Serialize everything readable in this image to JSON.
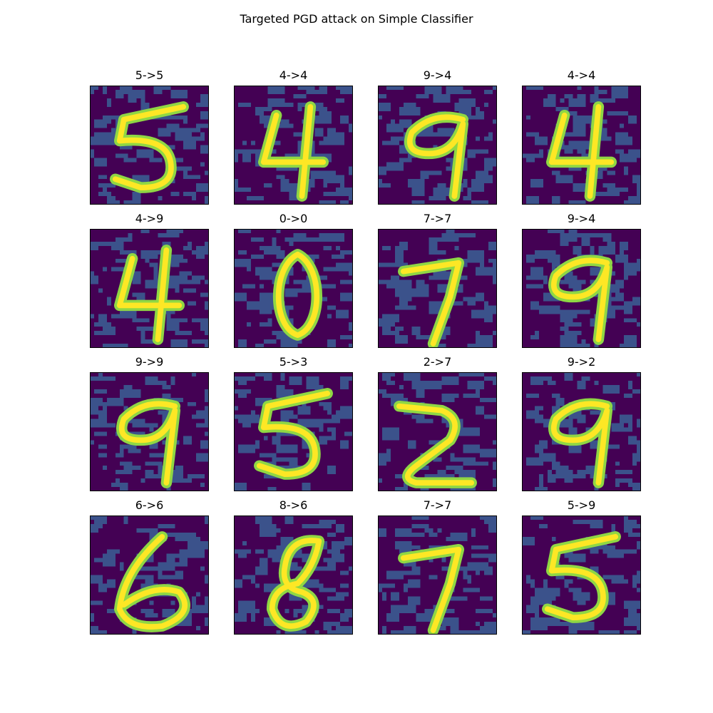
{
  "figure": {
    "title": "Targeted PGD attack on Simple Classifier"
  },
  "chart_data": {
    "type": "heatmap",
    "title": "Targeted PGD attack on Simple Classifier",
    "grid": {
      "rows": 4,
      "cols": 4
    },
    "image_size": [
      28,
      28
    ],
    "colormap": "viridis",
    "axes": "off",
    "panels": [
      {
        "label": "5->5",
        "digit": "5",
        "true": 5,
        "pred": 5
      },
      {
        "label": "4->4",
        "digit": "4",
        "true": 4,
        "pred": 4
      },
      {
        "label": "9->4",
        "digit": "9",
        "true": 9,
        "pred": 4
      },
      {
        "label": "4->4",
        "digit": "4",
        "true": 4,
        "pred": 4
      },
      {
        "label": "4->9",
        "digit": "4",
        "true": 4,
        "pred": 9
      },
      {
        "label": "0->0",
        "digit": "0",
        "true": 0,
        "pred": 0
      },
      {
        "label": "7->7",
        "digit": "7",
        "true": 7,
        "pred": 7
      },
      {
        "label": "9->4",
        "digit": "9",
        "true": 9,
        "pred": 4
      },
      {
        "label": "9->9",
        "digit": "9",
        "true": 9,
        "pred": 9
      },
      {
        "label": "5->3",
        "digit": "5",
        "true": 5,
        "pred": 3
      },
      {
        "label": "2->7",
        "digit": "2",
        "true": 2,
        "pred": 7
      },
      {
        "label": "9->2",
        "digit": "9",
        "true": 9,
        "pred": 2
      },
      {
        "label": "6->6",
        "digit": "6",
        "true": 6,
        "pred": 6
      },
      {
        "label": "8->6",
        "digit": "8",
        "true": 8,
        "pred": 6
      },
      {
        "label": "7->7",
        "digit": "7",
        "true": 7,
        "pred": 7
      },
      {
        "label": "5->9",
        "digit": "5",
        "true": 5,
        "pred": 9
      }
    ]
  },
  "colors": {
    "background_dark": "#440154",
    "background_mid": "#3b528b",
    "stroke_green": "#8fd744",
    "stroke_yellow": "#fde725",
    "frame": "#000000"
  }
}
